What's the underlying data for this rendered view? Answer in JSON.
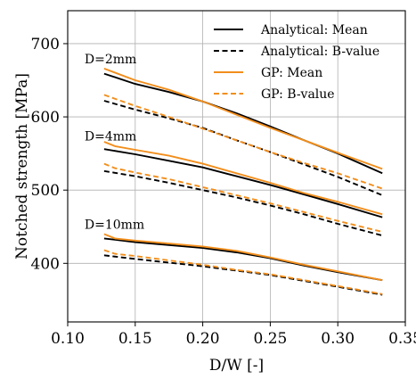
{
  "chart_data": {
    "type": "line",
    "xlabel": "D/W [-]",
    "ylabel": "Notched strength [MPa]",
    "xlim": [
      0.1,
      0.35
    ],
    "ylim": [
      320,
      745
    ],
    "xticks": [
      0.1,
      0.15,
      0.2,
      0.25,
      0.3,
      0.35
    ],
    "xtick_labels": [
      "0.10",
      "0.15",
      "0.20",
      "0.25",
      "0.30",
      "0.35"
    ],
    "yticks": [
      400,
      500,
      600,
      700
    ],
    "ytick_labels": [
      "400",
      "500",
      "600",
      "700"
    ],
    "grid": true,
    "legend_position": "top-right",
    "colors": {
      "analytical": "#000000",
      "gp": "#f28e1c",
      "grid": "#b0b0b0"
    },
    "legend": [
      {
        "label": "Analytical: Mean",
        "color": "#000000",
        "dash": "solid"
      },
      {
        "label": "Analytical: B-value",
        "color": "#000000",
        "dash": "dashed"
      },
      {
        "label": "GP: Mean",
        "color": "#f28e1c",
        "dash": "solid"
      },
      {
        "label": "GP: B-value",
        "color": "#f28e1c",
        "dash": "dashed"
      }
    ],
    "annotations": [
      {
        "text": "D=2mm",
        "x": 0.125,
        "y": 673
      },
      {
        "text": "D=4mm",
        "x": 0.125,
        "y": 568
      },
      {
        "text": "D=10mm",
        "x": 0.125,
        "y": 447
      }
    ],
    "series": [
      {
        "group": "D=2mm",
        "kind": "Analytical: Mean",
        "color": "#000000",
        "dash": "solid",
        "x": [
          0.127,
          0.15,
          0.175,
          0.2,
          0.225,
          0.25,
          0.275,
          0.3,
          0.333
        ],
        "y": [
          659,
          645,
          634,
          621,
          605,
          587,
          568,
          550,
          523
        ]
      },
      {
        "group": "D=2mm",
        "kind": "Analytical: B-value",
        "color": "#000000",
        "dash": "dashed",
        "x": [
          0.127,
          0.15,
          0.175,
          0.2,
          0.225,
          0.25,
          0.275,
          0.3,
          0.333
        ],
        "y": [
          622,
          610,
          598,
          585,
          568,
          552,
          535,
          518,
          493
        ]
      },
      {
        "group": "D=2mm",
        "kind": "GP: Mean",
        "color": "#f28e1c",
        "dash": "solid",
        "x": [
          0.127,
          0.15,
          0.175,
          0.2,
          0.225,
          0.25,
          0.275,
          0.3,
          0.333
        ],
        "y": [
          666,
          650,
          637,
          621,
          603,
          585,
          568,
          551,
          529
        ]
      },
      {
        "group": "D=2mm",
        "kind": "GP: B-value",
        "color": "#f28e1c",
        "dash": "dashed",
        "x": [
          0.127,
          0.15,
          0.175,
          0.2,
          0.225,
          0.25,
          0.275,
          0.3,
          0.333
        ],
        "y": [
          630,
          615,
          600,
          584,
          568,
          552,
          537,
          523,
          502
        ]
      },
      {
        "group": "D=4mm",
        "kind": "Analytical: Mean",
        "color": "#000000",
        "dash": "solid",
        "x": [
          0.127,
          0.15,
          0.175,
          0.2,
          0.225,
          0.25,
          0.275,
          0.3,
          0.333
        ],
        "y": [
          556,
          549,
          540,
          531,
          519,
          507,
          494,
          481,
          463
        ]
      },
      {
        "group": "D=4mm",
        "kind": "Analytical: B-value",
        "color": "#000000",
        "dash": "dashed",
        "x": [
          0.127,
          0.15,
          0.175,
          0.2,
          0.225,
          0.25,
          0.275,
          0.3,
          0.333
        ],
        "y": [
          526,
          519,
          510,
          500,
          490,
          479,
          467,
          454,
          438
        ]
      },
      {
        "group": "D=4mm",
        "kind": "GP: Mean",
        "color": "#f28e1c",
        "dash": "solid",
        "x": [
          0.127,
          0.135,
          0.15,
          0.175,
          0.2,
          0.225,
          0.25,
          0.275,
          0.3,
          0.333
        ],
        "y": [
          566,
          560,
          555,
          547,
          536,
          523,
          510,
          496,
          484,
          467
        ]
      },
      {
        "group": "D=4mm",
        "kind": "GP: B-value",
        "color": "#f28e1c",
        "dash": "dashed",
        "x": [
          0.127,
          0.135,
          0.15,
          0.175,
          0.2,
          0.225,
          0.25,
          0.275,
          0.3,
          0.333
        ],
        "y": [
          536,
          530,
          524,
          515,
          504,
          493,
          482,
          470,
          458,
          443
        ]
      },
      {
        "group": "D=10mm",
        "kind": "Analytical: Mean",
        "color": "#000000",
        "dash": "solid",
        "x": [
          0.127,
          0.15,
          0.175,
          0.2,
          0.225,
          0.25,
          0.275,
          0.3,
          0.333
        ],
        "y": [
          434,
          429,
          425,
          421,
          415,
          407,
          397,
          388,
          377
        ]
      },
      {
        "group": "D=10mm",
        "kind": "Analytical: B-value",
        "color": "#000000",
        "dash": "dashed",
        "x": [
          0.127,
          0.15,
          0.175,
          0.2,
          0.225,
          0.25,
          0.275,
          0.3,
          0.333
        ],
        "y": [
          411,
          406,
          401,
          396,
          390,
          384,
          376,
          368,
          357
        ]
      },
      {
        "group": "D=10mm",
        "kind": "GP: Mean",
        "color": "#f28e1c",
        "dash": "solid",
        "x": [
          0.127,
          0.135,
          0.15,
          0.175,
          0.2,
          0.225,
          0.25,
          0.275,
          0.3,
          0.333
        ],
        "y": [
          440,
          434,
          431,
          427,
          423,
          417,
          408,
          398,
          389,
          377
        ]
      },
      {
        "group": "D=10mm",
        "kind": "GP: B-value",
        "color": "#f28e1c",
        "dash": "dashed",
        "x": [
          0.127,
          0.135,
          0.15,
          0.175,
          0.2,
          0.225,
          0.25,
          0.275,
          0.3,
          0.333
        ],
        "y": [
          418,
          413,
          410,
          404,
          398,
          391,
          385,
          377,
          369,
          358
        ]
      }
    ]
  }
}
